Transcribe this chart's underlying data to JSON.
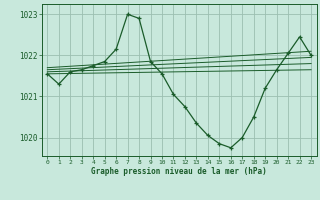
{
  "xlabel": "Graphe pression niveau de la mer (hPa)",
  "background_color": "#c8e8dc",
  "grid_color": "#9bbfb0",
  "line_color": "#1a5c2a",
  "ylim": [
    1019.55,
    1023.25
  ],
  "xlim": [
    -0.5,
    23.5
  ],
  "yticks": [
    1020,
    1021,
    1022,
    1023
  ],
  "xticks": [
    0,
    1,
    2,
    3,
    4,
    5,
    6,
    7,
    8,
    9,
    10,
    11,
    12,
    13,
    14,
    15,
    16,
    17,
    18,
    19,
    20,
    21,
    22,
    23
  ],
  "series": {
    "main": {
      "x": [
        0,
        1,
        2,
        3,
        4,
        5,
        6,
        7,
        8,
        9,
        10,
        11,
        12,
        13,
        14,
        15,
        16,
        17,
        18,
        19,
        20,
        21,
        22,
        23
      ],
      "y": [
        1021.55,
        1021.3,
        1021.6,
        1021.65,
        1021.75,
        1021.85,
        1022.15,
        1023.0,
        1022.9,
        1021.85,
        1021.55,
        1021.05,
        1020.75,
        1020.35,
        1020.05,
        1019.85,
        1019.75,
        1020.0,
        1020.5,
        1021.2,
        1021.65,
        1022.05,
        1022.45,
        1022.0
      ]
    },
    "trend1": {
      "x": [
        0,
        23
      ],
      "y": [
        1021.55,
        1021.65
      ]
    },
    "trend2": {
      "x": [
        0,
        23
      ],
      "y": [
        1021.6,
        1021.8
      ]
    },
    "trend3": {
      "x": [
        0,
        23
      ],
      "y": [
        1021.65,
        1021.95
      ]
    },
    "trend4": {
      "x": [
        0,
        23
      ],
      "y": [
        1021.7,
        1022.1
      ]
    }
  }
}
